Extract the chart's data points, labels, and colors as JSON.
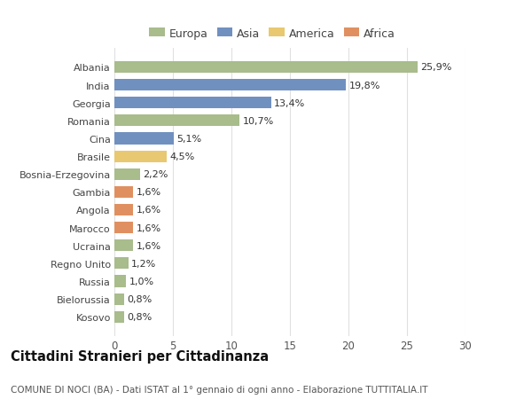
{
  "countries": [
    "Albania",
    "India",
    "Georgia",
    "Romania",
    "Cina",
    "Brasile",
    "Bosnia-Erzegovina",
    "Gambia",
    "Angola",
    "Marocco",
    "Ucraina",
    "Regno Unito",
    "Russia",
    "Bielorussia",
    "Kosovo"
  ],
  "values": [
    25.9,
    19.8,
    13.4,
    10.7,
    5.1,
    4.5,
    2.2,
    1.6,
    1.6,
    1.6,
    1.6,
    1.2,
    1.0,
    0.8,
    0.8
  ],
  "labels": [
    "25,9%",
    "19,8%",
    "13,4%",
    "10,7%",
    "5,1%",
    "4,5%",
    "2,2%",
    "1,6%",
    "1,6%",
    "1,6%",
    "1,6%",
    "1,2%",
    "1,0%",
    "0,8%",
    "0,8%"
  ],
  "colors": [
    "#a8bc8c",
    "#7090c0",
    "#7090c0",
    "#a8bc8c",
    "#7090c0",
    "#e8c870",
    "#a8bc8c",
    "#e09060",
    "#e09060",
    "#e09060",
    "#a8bc8c",
    "#a8bc8c",
    "#a8bc8c",
    "#a8bc8c",
    "#a8bc8c"
  ],
  "legend_labels": [
    "Europa",
    "Asia",
    "America",
    "Africa"
  ],
  "legend_colors": [
    "#a8bc8c",
    "#7090c0",
    "#e8c870",
    "#e09060"
  ],
  "title": "Cittadini Stranieri per Cittadinanza",
  "subtitle": "COMUNE DI NOCI (BA) - Dati ISTAT al 1° gennaio di ogni anno - Elaborazione TUTTITALIA.IT",
  "xlim": [
    0,
    30
  ],
  "xticks": [
    0,
    5,
    10,
    15,
    20,
    25,
    30
  ],
  "background_color": "#ffffff",
  "grid_color": "#e0e0e0",
  "bar_height": 0.65,
  "label_fontsize": 8.0,
  "ytick_fontsize": 8.0,
  "xtick_fontsize": 8.5,
  "title_fontsize": 10.5,
  "subtitle_fontsize": 7.5,
  "legend_fontsize": 9.0
}
